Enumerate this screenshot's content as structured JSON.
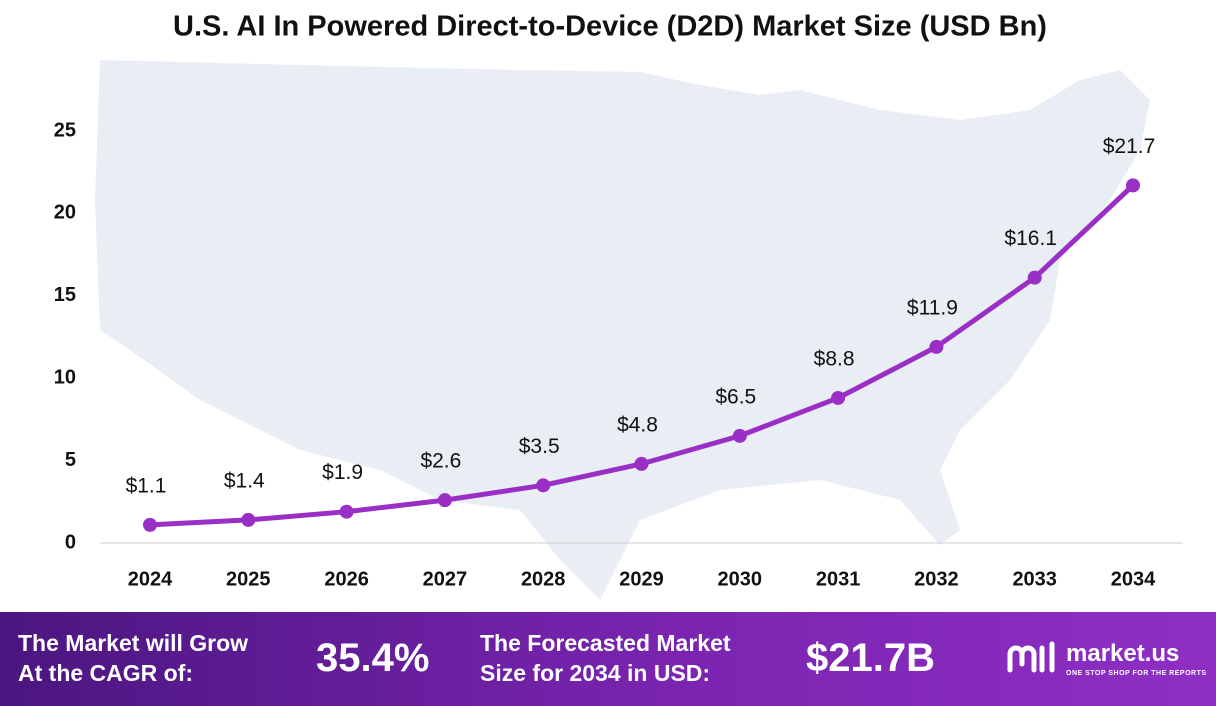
{
  "chart_data": {
    "type": "line",
    "title": "U.S. AI In Powered Direct-to-Device (D2D) Market Size (USD Bn)",
    "categories": [
      "2024",
      "2025",
      "2026",
      "2027",
      "2028",
      "2029",
      "2030",
      "2031",
      "2032",
      "2033",
      "2034"
    ],
    "values": [
      1.1,
      1.4,
      1.9,
      2.6,
      3.5,
      4.8,
      6.5,
      8.8,
      11.9,
      16.1,
      21.7
    ],
    "value_labels": [
      "$1.1",
      "$1.4",
      "$1.9",
      "$2.6",
      "$3.5",
      "$4.8",
      "$6.5",
      "$8.8",
      "$11.9",
      "$16.1",
      "$21.7"
    ],
    "color": "#9a2fc6",
    "ylim": [
      0,
      25
    ],
    "yticks": [
      0,
      5,
      10,
      15,
      20,
      25
    ],
    "grid": false
  },
  "footer": {
    "cagr_text": [
      "The Market will Grow",
      "At the CAGR of:"
    ],
    "cagr_value": "35.4%",
    "forecast_text": [
      "The Forecasted Market",
      "Size for 2034 in USD:"
    ],
    "forecast_value": "$21.7B",
    "brand": "market.us",
    "tagline": "ONE STOP SHOP FOR THE REPORTS"
  }
}
